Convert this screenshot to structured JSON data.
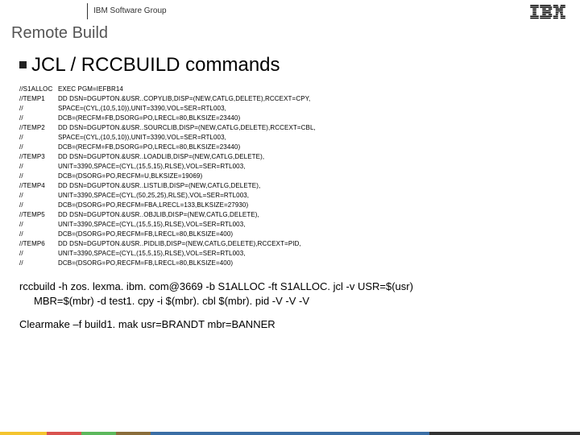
{
  "header": {
    "group_label": "IBM Software Group"
  },
  "slide": {
    "title": "Remote Build",
    "heading": "JCL / RCCBUILD commands"
  },
  "jcl": [
    {
      "label": "//S1ALLOC",
      "text": "EXEC PGM=IEFBR14"
    },
    {
      "label": "//TEMP1",
      "text": "DD DSN=DGUPTON.&USR..COPYLIB,DISP=(NEW,CATLG,DELETE),RCCEXT=CPY,"
    },
    {
      "label": "//",
      "text": "SPACE=(CYL,(10,5,10)),UNIT=3390,VOL=SER=RTL003,"
    },
    {
      "label": "//",
      "text": "DCB=(RECFM=FB,DSORG=PO,LRECL=80,BLKSIZE=23440)"
    },
    {
      "label": "//TEMP2",
      "text": "DD DSN=DGUPTON.&USR..SOURCLIB,DISP=(NEW,CATLG,DELETE),RCCEXT=CBL,"
    },
    {
      "label": "//",
      "text": "SPACE=(CYL,(10,5,10)),UNIT=3390,VOL=SER=RTL003,"
    },
    {
      "label": "//",
      "text": "DCB=(RECFM=FB,DSORG=PO,LRECL=80,BLKSIZE=23440)"
    },
    {
      "label": "//TEMP3",
      "text": "DD DSN=DGUPTON.&USR..LOADLIB,DISP=(NEW,CATLG,DELETE),"
    },
    {
      "label": "//",
      "text": "UNIT=3390,SPACE=(CYL,(15,5,15),RLSE),VOL=SER=RTL003,"
    },
    {
      "label": "//",
      "text": "DCB=(DSORG=PO,RECFM=U,BLKSIZE=19069)"
    },
    {
      "label": "//TEMP4",
      "text": "DD DSN=DGUPTON.&USR..LISTLIB,DISP=(NEW,CATLG,DELETE),"
    },
    {
      "label": "//",
      "text": "UNIT=3390,SPACE=(CYL,(50,25,25),RLSE),VOL=SER=RTL003,"
    },
    {
      "label": "//",
      "text": "DCB=(DSORG=PO,RECFM=FBA,LRECL=133,BLKSIZE=27930)"
    },
    {
      "label": "//TEMP5",
      "text": "DD DSN=DGUPTON.&USR..OBJLIB,DISP=(NEW,CATLG,DELETE),"
    },
    {
      "label": "//",
      "text": "UNIT=3390,SPACE=(CYL,(15,5,15),RLSE),VOL=SER=RTL003,"
    },
    {
      "label": "//",
      "text": "DCB=(DSORG=PO,RECFM=FB,LRECL=80,BLKSIZE=400)"
    },
    {
      "label": "//TEMP6",
      "text": "DD DSN=DGUPTON.&USR..PIDLIB,DISP=(NEW,CATLG,DELETE),RCCEXT=PID,"
    },
    {
      "label": "//",
      "text": "UNIT=3390,SPACE=(CYL,(15,5,15),RLSE),VOL=SER=RTL003,"
    },
    {
      "label": "//",
      "text": "DCB=(DSORG=PO,RECFM=FB,LRECL=80,BLKSIZE=400)"
    }
  ],
  "commands": {
    "rccbuild_line1": "rccbuild -h zos. lexma. ibm. com@3669 -b S1ALLOC -ft S1ALLOC. jcl -v USR=$(usr)",
    "rccbuild_line2": "MBR=$(mbr) -d test1. cpy -i $(mbr). cbl $(mbr). pid -V -V -V",
    "clearmake": "Clearmake –f build1. mak usr=BRANDT mbr=BANNER"
  },
  "footer_stripes": [
    {
      "color": "#f4c430",
      "width": "8%"
    },
    {
      "color": "#d9534f",
      "width": "6%"
    },
    {
      "color": "#5cb85c",
      "width": "6%"
    },
    {
      "color": "#8a6d3b",
      "width": "6%"
    },
    {
      "color": "#3b6ea5",
      "width": "48%"
    },
    {
      "color": "#333333",
      "width": "26%"
    }
  ]
}
